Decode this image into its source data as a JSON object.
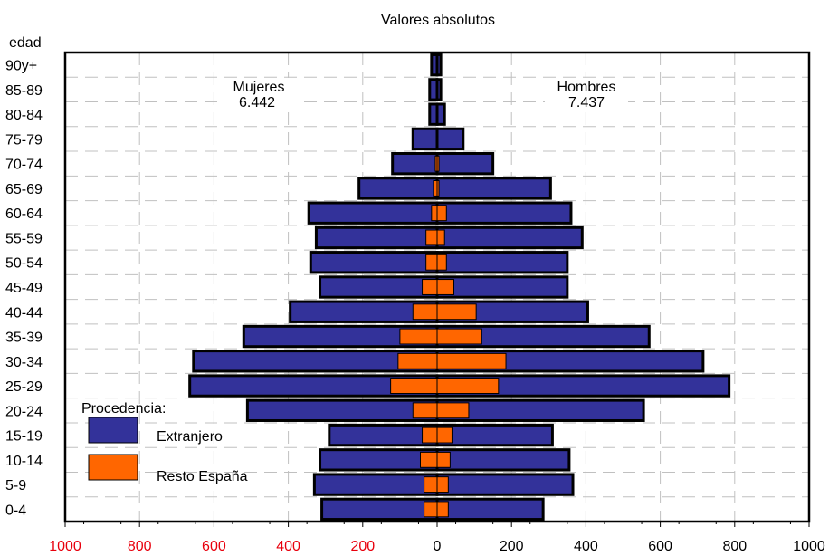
{
  "chart_data": {
    "type": "bar",
    "orientation": "horizontal-population-pyramid",
    "title": "Valores absolutos",
    "ylabel": "edad",
    "categories": [
      "0-4",
      "5-9",
      "10-14",
      "15-19",
      "20-24",
      "25-29",
      "30-34",
      "35-39",
      "40-44",
      "45-49",
      "50-54",
      "55-59",
      "60-64",
      "65-69",
      "70-74",
      "75-79",
      "80-84",
      "85-89",
      "90y+"
    ],
    "xlim": [
      -1000,
      1000
    ],
    "x_ticks": [
      {
        "value": -1000,
        "label": "1000"
      },
      {
        "value": -800,
        "label": "800"
      },
      {
        "value": -600,
        "label": "600"
      },
      {
        "value": -400,
        "label": "400"
      },
      {
        "value": -200,
        "label": "200"
      },
      {
        "value": 0,
        "label": "0"
      },
      {
        "value": 200,
        "label": "200"
      },
      {
        "value": 400,
        "label": "400"
      },
      {
        "value": 600,
        "label": "600"
      },
      {
        "value": 800,
        "label": "800"
      },
      {
        "value": 1000,
        "label": "1000"
      }
    ],
    "negative_tick_color": "#e8000d",
    "positive_tick_color": "#000000",
    "grid": true,
    "sides": {
      "left": {
        "label": "Mujeres",
        "total": "6.442"
      },
      "right": {
        "label": "Hombres",
        "total": "7.437"
      }
    },
    "legend": {
      "title": "Procedencia:",
      "position": "bottom-left"
    },
    "series": [
      {
        "name": "Extranjero",
        "color": "#33329a",
        "women": [
          310,
          330,
          315,
          290,
          510,
          665,
          655,
          520,
          395,
          315,
          340,
          325,
          345,
          210,
          120,
          65,
          20,
          20,
          15
        ],
        "men": [
          285,
          365,
          355,
          310,
          555,
          785,
          715,
          570,
          405,
          350,
          350,
          390,
          360,
          305,
          150,
          70,
          20,
          10,
          10
        ]
      },
      {
        "name": "Resto España",
        "color": "#ff6600",
        "women": [
          35,
          35,
          45,
          40,
          65,
          125,
          105,
          100,
          65,
          40,
          30,
          30,
          15,
          10,
          5,
          0,
          0,
          0,
          0
        ],
        "men": [
          30,
          30,
          35,
          40,
          85,
          165,
          185,
          120,
          105,
          45,
          25,
          20,
          25,
          5,
          5,
          0,
          0,
          0,
          0
        ]
      }
    ]
  }
}
